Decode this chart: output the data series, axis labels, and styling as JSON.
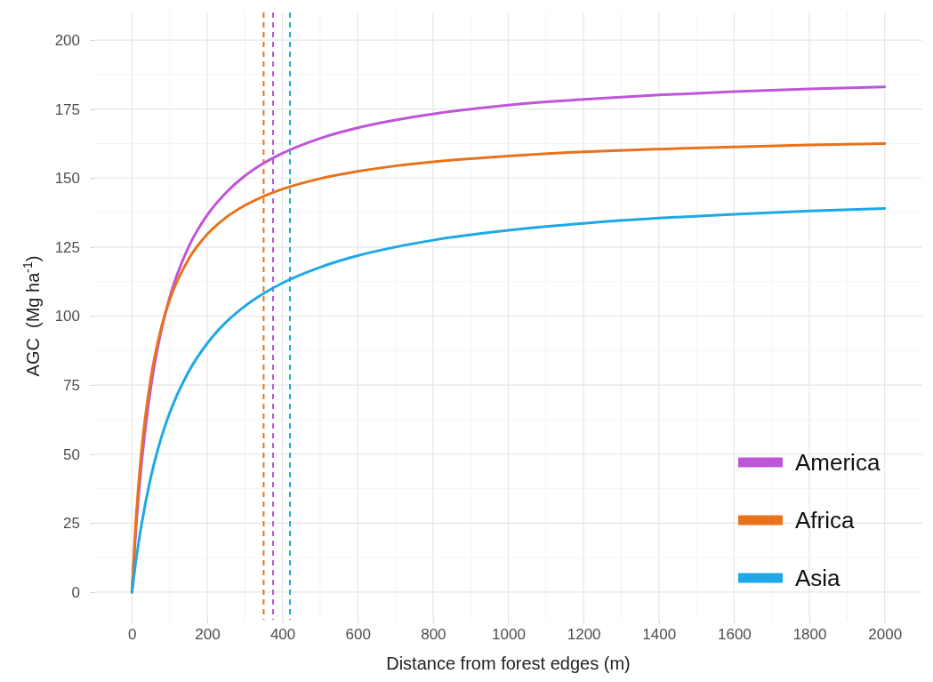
{
  "chart_data": {
    "type": "line",
    "xlabel": "Distance from forest edges (m)",
    "ylabel": "AGC  (Mg ha$^{-1}$)",
    "x": [
      0,
      10,
      25,
      50,
      75,
      100,
      150,
      200,
      250,
      300,
      350,
      400,
      500,
      600,
      700,
      800,
      1000,
      1200,
      1400,
      1600,
      1800,
      2000
    ],
    "series": [
      {
        "name": "America",
        "color": "#bf55d9",
        "values": [
          0,
          21.5,
          45.9,
          74.0,
          92.9,
          106.6,
          124.9,
          136.6,
          144.7,
          150.8,
          155.4,
          159.0,
          164.4,
          168.2,
          171.0,
          173.2,
          176.4,
          178.5,
          180.1,
          181.3,
          182.3,
          183.0
        ]
      },
      {
        "name": "Africa",
        "color": "#e8731a",
        "values": [
          0,
          24.6,
          50.3,
          77.3,
          94.2,
          105.8,
          120.5,
          129.6,
          135.7,
          140.1,
          143.4,
          146.0,
          149.8,
          152.4,
          154.4,
          155.9,
          158.0,
          159.5,
          160.5,
          161.3,
          162.0,
          162.5
        ]
      },
      {
        "name": "Asia",
        "color": "#1ea8e6",
        "values": [
          0,
          10.7,
          24.1,
          41.5,
          54.6,
          64.8,
          79.7,
          90.1,
          97.8,
          103.6,
          108.2,
          112.0,
          117.7,
          121.9,
          125.0,
          127.5,
          131.1,
          133.6,
          135.5,
          136.9,
          138.1,
          139.0
        ]
      }
    ],
    "xlim": [
      -100,
      2100
    ],
    "ylim": [
      -10,
      210
    ],
    "xticks": [
      0,
      200,
      400,
      600,
      800,
      1000,
      1200,
      1400,
      1600,
      1800,
      2000
    ],
    "yticks": [
      0,
      25,
      50,
      75,
      100,
      125,
      150,
      175,
      200
    ],
    "ref_lines": [
      {
        "axis": "x",
        "value": 350,
        "color": "#e8731a",
        "line_style": "dashed"
      },
      {
        "axis": "x",
        "value": 375,
        "color": "#bf55d9",
        "line_style": "dashed"
      },
      {
        "axis": "x",
        "value": 420,
        "color": "#1ea8e6",
        "line_style": "dashed"
      }
    ],
    "grid": true,
    "legend": "bottom right",
    "line_style": "solid",
    "marker": "none"
  }
}
